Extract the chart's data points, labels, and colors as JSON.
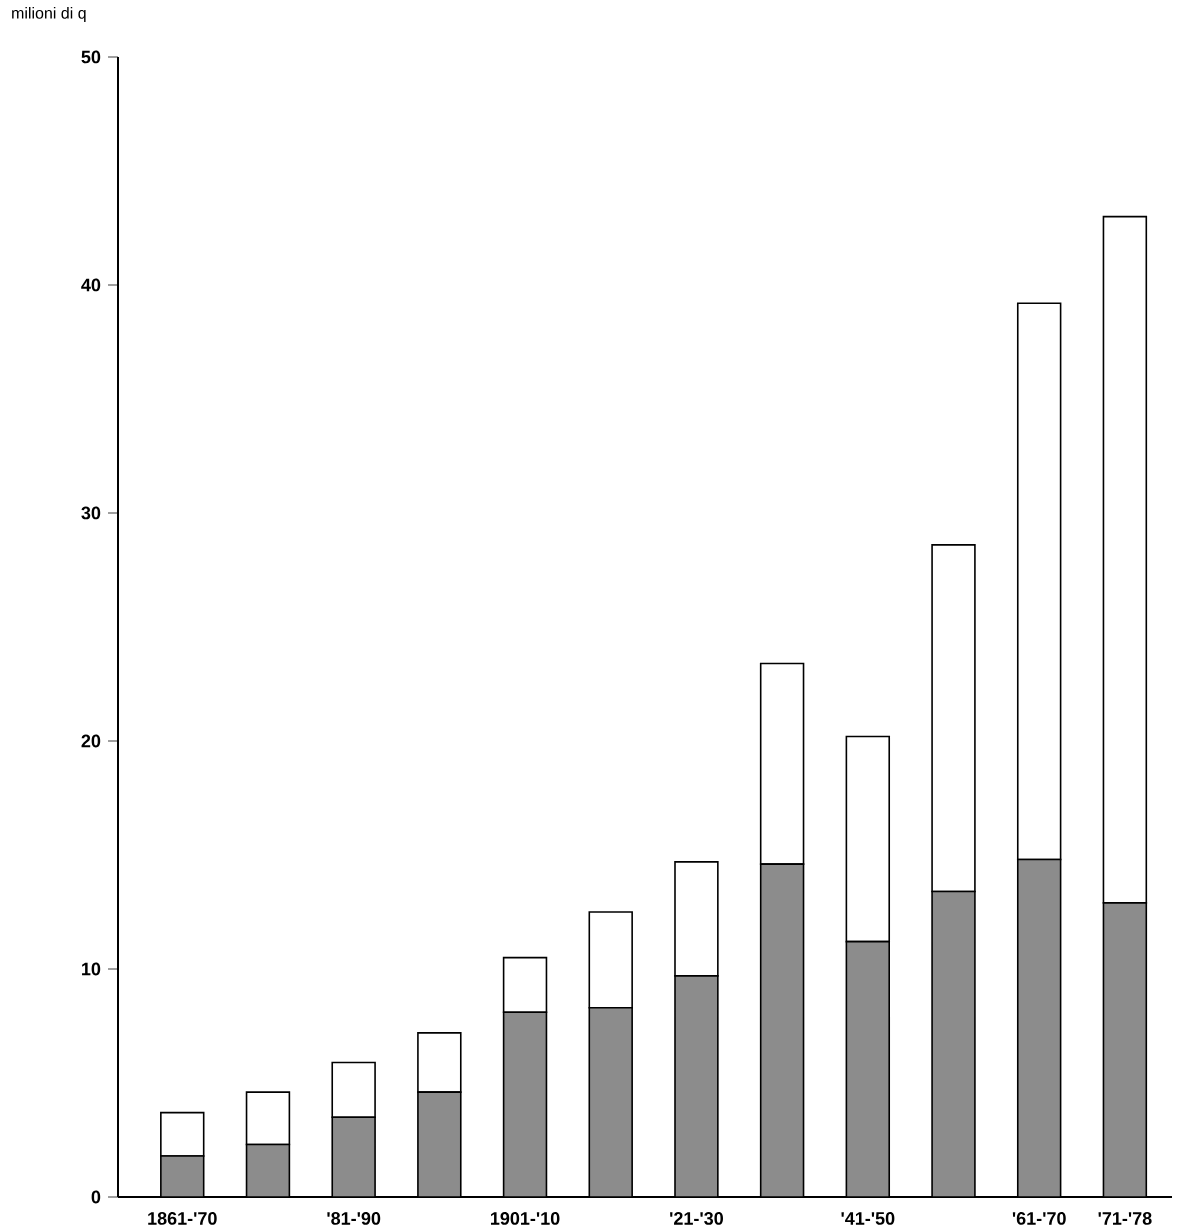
{
  "chart_data": {
    "type": "bar",
    "stacked": true,
    "ylabel": "milioni di q",
    "categories": [
      "1861-'70",
      null,
      "'81-'90",
      null,
      "1901-'10",
      null,
      "'21-'30",
      null,
      "'41-'50",
      null,
      "'61-'70",
      "'71-'78"
    ],
    "series": [
      {
        "color": "#8c8c8c",
        "values": [
          1.8,
          2.3,
          3.5,
          4.6,
          8.1,
          8.3,
          9.7,
          14.6,
          11.2,
          13.4,
          14.8,
          12.9
        ]
      },
      {
        "color": "#ffffff",
        "values": [
          1.9,
          2.3,
          2.4,
          2.6,
          2.4,
          4.2,
          5.0,
          8.8,
          9.0,
          15.2,
          24.4,
          30.1
        ]
      }
    ],
    "ylim": [
      0,
      50
    ],
    "yticks": [
      0,
      10,
      20,
      30,
      40,
      50
    ],
    "grid": false
  }
}
